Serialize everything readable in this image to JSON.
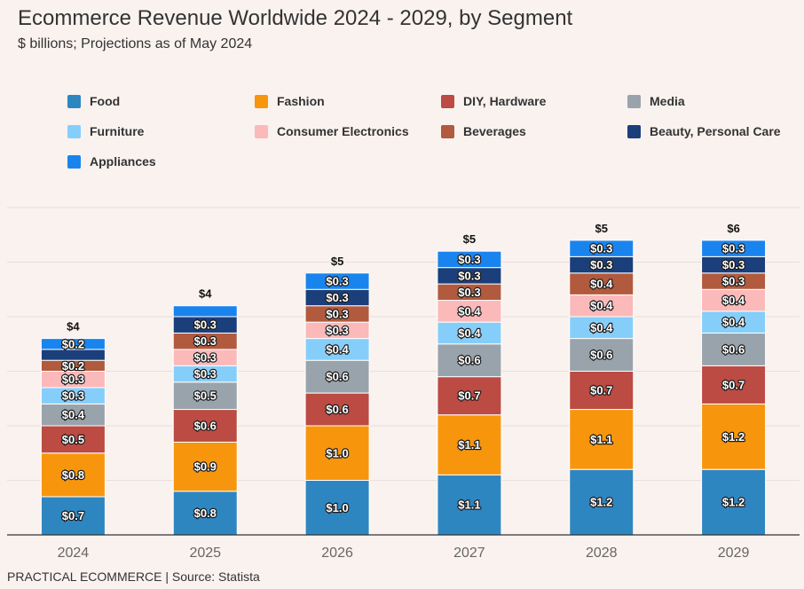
{
  "header": {
    "title": "Ecommerce Revenue Worldwide 2024 - 2029, by Segment",
    "subtitle": "$ billions; Projections as of May 2024"
  },
  "footer": {
    "source": "PRACTICAL ECOMMERCE | Source: Statista"
  },
  "chart_data": {
    "type": "bar",
    "stacked": true,
    "title": "Ecommerce Revenue Worldwide 2024 - 2029, by Segment",
    "subtitle": "$ billions; Projections as of May 2024",
    "xlabel": "",
    "ylabel": "$ billions",
    "ylim": [
      0,
      6
    ],
    "grid": true,
    "legend_position": "top",
    "categories": [
      "2024",
      "2025",
      "2026",
      "2027",
      "2028",
      "2029"
    ],
    "totals": [
      "$4",
      "$4",
      "$5",
      "$5",
      "$5",
      "$6"
    ],
    "series": [
      {
        "name": "Food",
        "color": "#2e86c1",
        "values": [
          0.7,
          0.8,
          1.0,
          1.1,
          1.2,
          1.2
        ],
        "labels": [
          "$0.7",
          "$0.8",
          "$1.0",
          "$1.1",
          "$1.2",
          "$1.2"
        ]
      },
      {
        "name": "Fashion",
        "color": "#f7960d",
        "values": [
          0.8,
          0.9,
          1.0,
          1.1,
          1.1,
          1.2
        ],
        "labels": [
          "$0.8",
          "$0.9",
          "$1.0",
          "$1.1",
          "$1.1",
          "$1.2"
        ]
      },
      {
        "name": "DIY, Hardware",
        "color": "#bc4b43",
        "values": [
          0.5,
          0.6,
          0.6,
          0.7,
          0.7,
          0.7
        ],
        "labels": [
          "$0.5",
          "$0.6",
          "$0.6",
          "$0.7",
          "$0.7",
          "$0.7"
        ]
      },
      {
        "name": "Media",
        "color": "#99a3ab",
        "values": [
          0.4,
          0.5,
          0.6,
          0.6,
          0.6,
          0.6
        ],
        "labels": [
          "$0.4",
          "$0.5",
          "$0.6",
          "$0.6",
          "$0.6",
          "$0.6"
        ]
      },
      {
        "name": "Furniture",
        "color": "#86cefa",
        "values": [
          0.3,
          0.3,
          0.4,
          0.4,
          0.4,
          0.4
        ],
        "labels": [
          "$0.3",
          "$0.3",
          "$0.4",
          "$0.4",
          "$0.4",
          "$0.4"
        ]
      },
      {
        "name": "Consumer Electronics",
        "color": "#fbb9ba",
        "values": [
          0.3,
          0.3,
          0.3,
          0.4,
          0.4,
          0.4
        ],
        "labels": [
          "$0.3",
          "$0.3",
          "$0.3",
          "$0.4",
          "$0.4",
          "$0.4"
        ]
      },
      {
        "name": "Beverages",
        "color": "#b25a3d",
        "values": [
          0.2,
          0.3,
          0.3,
          0.3,
          0.4,
          0.3
        ],
        "labels": [
          "$0.2",
          "$0.3",
          "$0.3",
          "$0.3",
          "$0.4",
          "$0.3"
        ]
      },
      {
        "name": "Beauty, Personal Care",
        "color": "#1b3f7a",
        "values": [
          0.2,
          0.3,
          0.3,
          0.3,
          0.3,
          0.3
        ],
        "labels": [
          "",
          "$0.3",
          "$0.3",
          "$0.3",
          "$0.3",
          "$0.3"
        ]
      },
      {
        "name": "Appliances",
        "color": "#1a84ee",
        "values": [
          0.2,
          0.2,
          0.3,
          0.3,
          0.3,
          0.3
        ],
        "labels": [
          "$0.2",
          "",
          "$0.3",
          "$0.3",
          "$0.3",
          "$0.3"
        ]
      }
    ]
  }
}
